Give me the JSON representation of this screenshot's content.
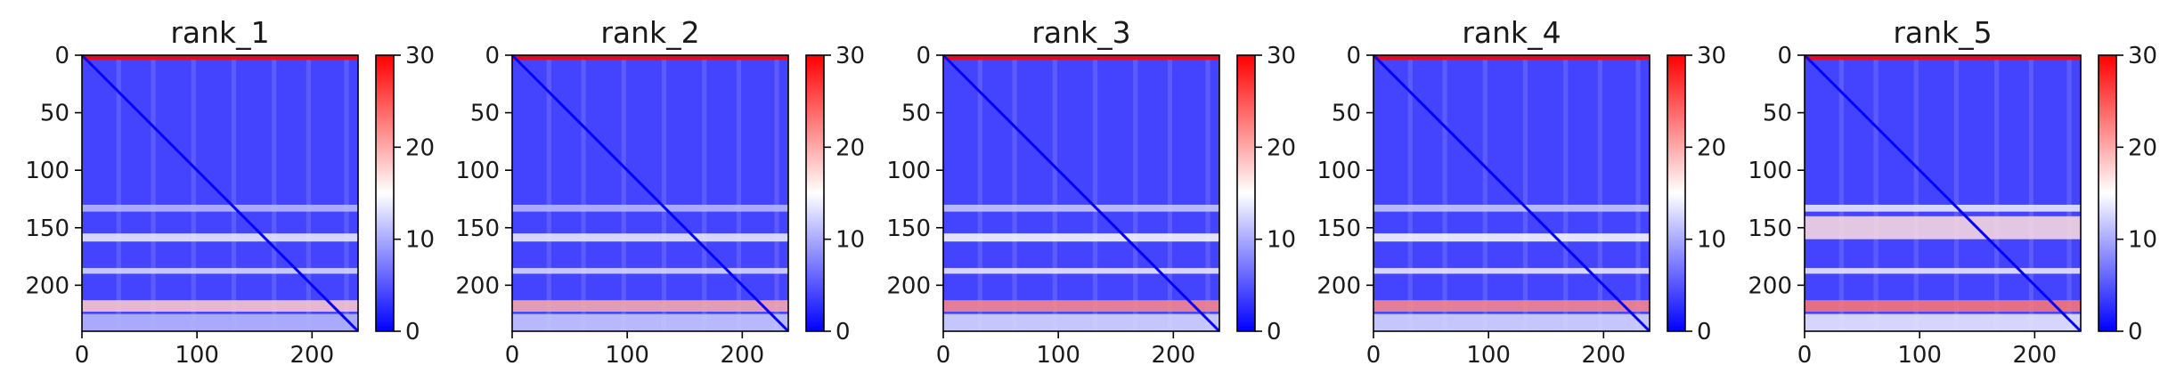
{
  "chart_data": [
    {
      "type": "heatmap",
      "title": "rank_1",
      "matrix_size": 240,
      "xlim": [
        0,
        240
      ],
      "ylim": [
        240,
        0
      ],
      "x_ticks": [
        0,
        100,
        200
      ],
      "y_ticks": [
        0,
        50,
        100,
        150,
        200
      ],
      "colorbar": {
        "vmin": 0,
        "vmax": 30,
        "ticks": [
          0,
          10,
          20,
          30
        ],
        "colors": [
          "#0000ff",
          "#ffffff",
          "#ff0000"
        ]
      },
      "features": {
        "diagonal_value": 0,
        "background_value": 4,
        "bands": [
          {
            "rows": [
              0,
              4
            ],
            "value": 30
          },
          {
            "rows": [
              130,
              136
            ],
            "value": 11
          },
          {
            "rows": [
              155,
              162
            ],
            "value": 14
          },
          {
            "rows": [
              185,
              190
            ],
            "value": 13
          },
          {
            "rows": [
              213,
              223
            ],
            "value": 18
          },
          {
            "rows": [
              225,
              240
            ],
            "value": 11
          }
        ]
      }
    },
    {
      "type": "heatmap",
      "title": "rank_2",
      "matrix_size": 240,
      "xlim": [
        0,
        240
      ],
      "ylim": [
        240,
        0
      ],
      "x_ticks": [
        0,
        100,
        200
      ],
      "y_ticks": [
        0,
        50,
        100,
        150,
        200
      ],
      "colorbar": {
        "vmin": 0,
        "vmax": 30,
        "ticks": [
          0,
          10,
          20,
          30
        ],
        "colors": [
          "#0000ff",
          "#ffffff",
          "#ff0000"
        ]
      },
      "features": {
        "diagonal_value": 0,
        "background_value": 4,
        "bands": [
          {
            "rows": [
              0,
              4
            ],
            "value": 30
          },
          {
            "rows": [
              130,
              136
            ],
            "value": 11
          },
          {
            "rows": [
              155,
              162
            ],
            "value": 14
          },
          {
            "rows": [
              185,
              190
            ],
            "value": 13
          },
          {
            "rows": [
              213,
              223
            ],
            "value": 20
          },
          {
            "rows": [
              225,
              240
            ],
            "value": 12
          }
        ]
      }
    },
    {
      "type": "heatmap",
      "title": "rank_3",
      "matrix_size": 240,
      "xlim": [
        0,
        240
      ],
      "ylim": [
        240,
        0
      ],
      "x_ticks": [
        0,
        100,
        200
      ],
      "y_ticks": [
        0,
        50,
        100,
        150,
        200
      ],
      "colorbar": {
        "vmin": 0,
        "vmax": 30,
        "ticks": [
          0,
          10,
          20,
          30
        ],
        "colors": [
          "#0000ff",
          "#ffffff",
          "#ff0000"
        ]
      },
      "features": {
        "diagonal_value": 0,
        "background_value": 4,
        "bands": [
          {
            "rows": [
              0,
              4
            ],
            "value": 30
          },
          {
            "rows": [
              130,
              136
            ],
            "value": 12
          },
          {
            "rows": [
              155,
              162
            ],
            "value": 15
          },
          {
            "rows": [
              185,
              190
            ],
            "value": 14
          },
          {
            "rows": [
              213,
              223
            ],
            "value": 22
          },
          {
            "rows": [
              225,
              240
            ],
            "value": 13
          }
        ]
      }
    },
    {
      "type": "heatmap",
      "title": "rank_4",
      "matrix_size": 240,
      "xlim": [
        0,
        240
      ],
      "ylim": [
        240,
        0
      ],
      "x_ticks": [
        0,
        100,
        200
      ],
      "y_ticks": [
        0,
        50,
        100,
        150,
        200
      ],
      "colorbar": {
        "vmin": 0,
        "vmax": 30,
        "ticks": [
          0,
          10,
          20,
          30
        ],
        "colors": [
          "#0000ff",
          "#ffffff",
          "#ff0000"
        ]
      },
      "features": {
        "diagonal_value": 0,
        "background_value": 4,
        "bands": [
          {
            "rows": [
              0,
              4
            ],
            "value": 30
          },
          {
            "rows": [
              130,
              136
            ],
            "value": 12
          },
          {
            "rows": [
              155,
              162
            ],
            "value": 15
          },
          {
            "rows": [
              185,
              190
            ],
            "value": 14
          },
          {
            "rows": [
              213,
              223
            ],
            "value": 22
          },
          {
            "rows": [
              225,
              240
            ],
            "value": 13
          }
        ]
      }
    },
    {
      "type": "heatmap",
      "title": "rank_5",
      "matrix_size": 240,
      "xlim": [
        0,
        240
      ],
      "ylim": [
        240,
        0
      ],
      "x_ticks": [
        0,
        100,
        200
      ],
      "y_ticks": [
        0,
        50,
        100,
        150,
        200
      ],
      "colorbar": {
        "vmin": 0,
        "vmax": 30,
        "ticks": [
          0,
          10,
          20,
          30
        ],
        "colors": [
          "#0000ff",
          "#ffffff",
          "#ff0000"
        ]
      },
      "features": {
        "diagonal_value": 0,
        "background_value": 4,
        "bands": [
          {
            "rows": [
              0,
              4
            ],
            "value": 30
          },
          {
            "rows": [
              130,
              136
            ],
            "value": 14
          },
          {
            "rows": [
              140,
              160
            ],
            "value": 17
          },
          {
            "rows": [
              185,
              190
            ],
            "value": 14
          },
          {
            "rows": [
              213,
              223
            ],
            "value": 23
          },
          {
            "rows": [
              225,
              240
            ],
            "value": 14
          }
        ]
      }
    }
  ]
}
